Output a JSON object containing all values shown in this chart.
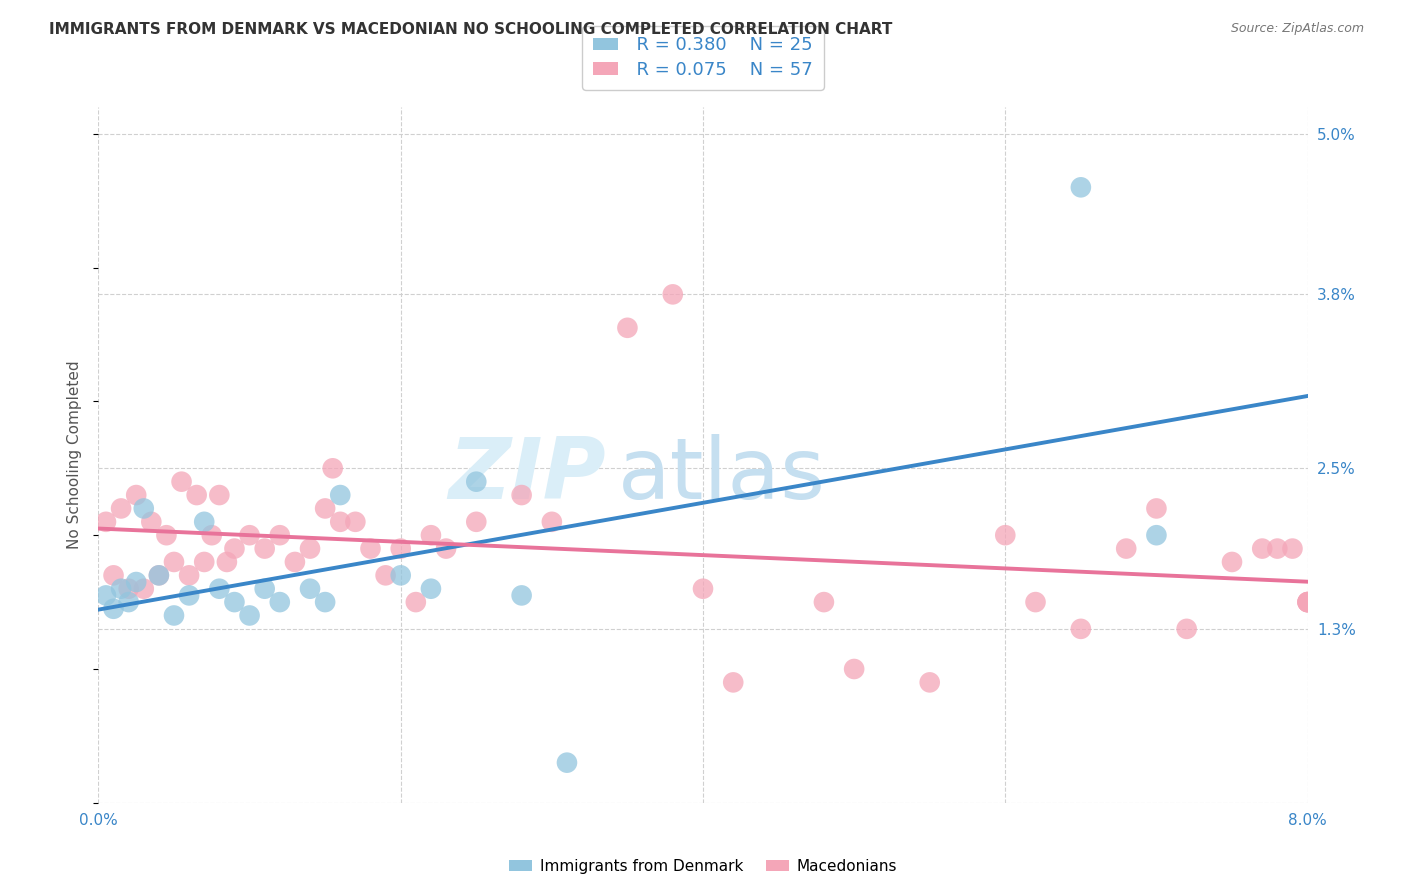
{
  "title": "IMMIGRANTS FROM DENMARK VS MACEDONIAN NO SCHOOLING COMPLETED CORRELATION CHART",
  "source": "Source: ZipAtlas.com",
  "ylabel": "No Schooling Completed",
  "ytick_vals": [
    0.0,
    1.3,
    2.5,
    3.8,
    5.0
  ],
  "ytick_labels": [
    "",
    "1.3%",
    "2.5%",
    "3.8%",
    "5.0%"
  ],
  "xlim": [
    0.0,
    8.0
  ],
  "ylim": [
    0.0,
    5.2
  ],
  "legend_r1": "R = 0.380",
  "legend_n1": "N = 25",
  "legend_r2": "R = 0.075",
  "legend_n2": "N = 57",
  "legend_label1": "Immigrants from Denmark",
  "legend_label2": "Macedonians",
  "color_blue": "#92c5de",
  "color_pink": "#f4a6b8",
  "color_blue_line": "#3a86c8",
  "color_pink_line": "#e8739a",
  "blue_scatter_x": [
    0.05,
    0.1,
    0.15,
    0.2,
    0.25,
    0.3,
    0.4,
    0.5,
    0.6,
    0.7,
    0.8,
    0.9,
    1.0,
    1.1,
    1.2,
    1.4,
    1.5,
    1.6,
    2.0,
    2.2,
    2.5,
    2.8,
    3.1,
    6.5,
    7.0
  ],
  "blue_scatter_y": [
    1.55,
    1.45,
    1.6,
    1.5,
    1.65,
    2.2,
    1.7,
    1.4,
    1.55,
    2.1,
    1.6,
    1.5,
    1.4,
    1.6,
    1.5,
    1.6,
    1.5,
    2.3,
    1.7,
    1.6,
    2.4,
    1.55,
    0.3,
    4.6,
    2.0
  ],
  "pink_scatter_x": [
    0.05,
    0.1,
    0.15,
    0.2,
    0.25,
    0.3,
    0.35,
    0.4,
    0.45,
    0.5,
    0.55,
    0.6,
    0.65,
    0.7,
    0.75,
    0.8,
    0.85,
    0.9,
    1.0,
    1.1,
    1.2,
    1.3,
    1.4,
    1.5,
    1.55,
    1.6,
    1.7,
    1.8,
    1.9,
    2.0,
    2.1,
    2.2,
    2.3,
    2.5,
    2.8,
    3.0,
    3.5,
    3.8,
    4.0,
    4.2,
    4.8,
    5.0,
    5.5,
    6.0,
    6.2,
    6.5,
    6.8,
    7.0,
    7.2,
    7.5,
    7.7,
    7.8,
    7.9,
    8.0,
    8.0,
    8.0,
    8.0
  ],
  "pink_scatter_y": [
    2.1,
    1.7,
    2.2,
    1.6,
    2.3,
    1.6,
    2.1,
    1.7,
    2.0,
    1.8,
    2.4,
    1.7,
    2.3,
    1.8,
    2.0,
    2.3,
    1.8,
    1.9,
    2.0,
    1.9,
    2.0,
    1.8,
    1.9,
    2.2,
    2.5,
    2.1,
    2.1,
    1.9,
    1.7,
    1.9,
    1.5,
    2.0,
    1.9,
    2.1,
    2.3,
    2.1,
    3.55,
    3.8,
    1.6,
    0.9,
    1.5,
    1.0,
    0.9,
    2.0,
    1.5,
    1.3,
    1.9,
    2.2,
    1.3,
    1.8,
    1.9,
    1.9,
    1.9,
    1.5,
    1.5,
    1.5,
    1.5
  ],
  "background_color": "#ffffff",
  "grid_color": "#d0d0d0"
}
